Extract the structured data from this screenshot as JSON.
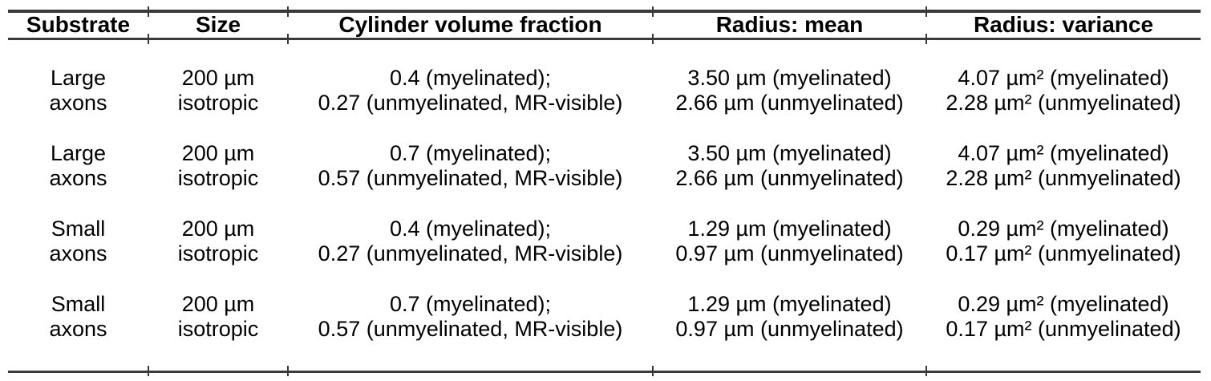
{
  "colors": {
    "rule": "#3a3a3a",
    "text": "#000000",
    "background": "#ffffff"
  },
  "table": {
    "columns": [
      {
        "id": "substrate",
        "label": "Substrate"
      },
      {
        "id": "size",
        "label": "Size"
      },
      {
        "id": "cvf",
        "label": "Cylinder volume fraction"
      },
      {
        "id": "radius_mean",
        "label": "Radius: mean"
      },
      {
        "id": "radius_variance",
        "label": "Radius: variance"
      }
    ],
    "rows": [
      {
        "substrate": [
          "Large",
          "axons"
        ],
        "size": [
          "200 µm",
          "isotropic"
        ],
        "cvf": [
          "0.4 (myelinated);",
          "0.27 (unmyelinated, MR-visible)"
        ],
        "radius_mean": [
          "3.50 µm (myelinated)",
          "2.66 µm (unmyelinated)"
        ],
        "radius_variance": [
          "4.07 µm² (myelinated)",
          "2.28 µm² (unmyelinated)"
        ]
      },
      {
        "substrate": [
          "Large",
          "axons"
        ],
        "size": [
          "200 µm",
          "isotropic"
        ],
        "cvf": [
          "0.7 (myelinated);",
          "0.57 (unmyelinated, MR-visible)"
        ],
        "radius_mean": [
          "3.50 µm (myelinated)",
          "2.66 µm (unmyelinated)"
        ],
        "radius_variance": [
          "4.07 µm² (myelinated)",
          "2.28 µm² (unmyelinated)"
        ]
      },
      {
        "substrate": [
          "Small",
          "axons"
        ],
        "size": [
          "200 µm",
          "isotropic"
        ],
        "cvf": [
          "0.4 (myelinated);",
          "0.27 (unmyelinated, MR-visible)"
        ],
        "radius_mean": [
          "1.29 µm (myelinated)",
          "0.97 µm (unmyelinated)"
        ],
        "radius_variance": [
          "0.29 µm² (myelinated)",
          "0.17 µm² (unmyelinated)"
        ]
      },
      {
        "substrate": [
          "Small",
          "axons"
        ],
        "size": [
          "200 µm",
          "isotropic"
        ],
        "cvf": [
          "0.7 (myelinated);",
          "0.57 (unmyelinated, MR-visible)"
        ],
        "radius_mean": [
          "1.29 µm (myelinated)",
          "0.97 µm (unmyelinated)"
        ],
        "radius_variance": [
          "0.29 µm² (myelinated)",
          "0.17 µm² (unmyelinated)"
        ]
      }
    ]
  }
}
